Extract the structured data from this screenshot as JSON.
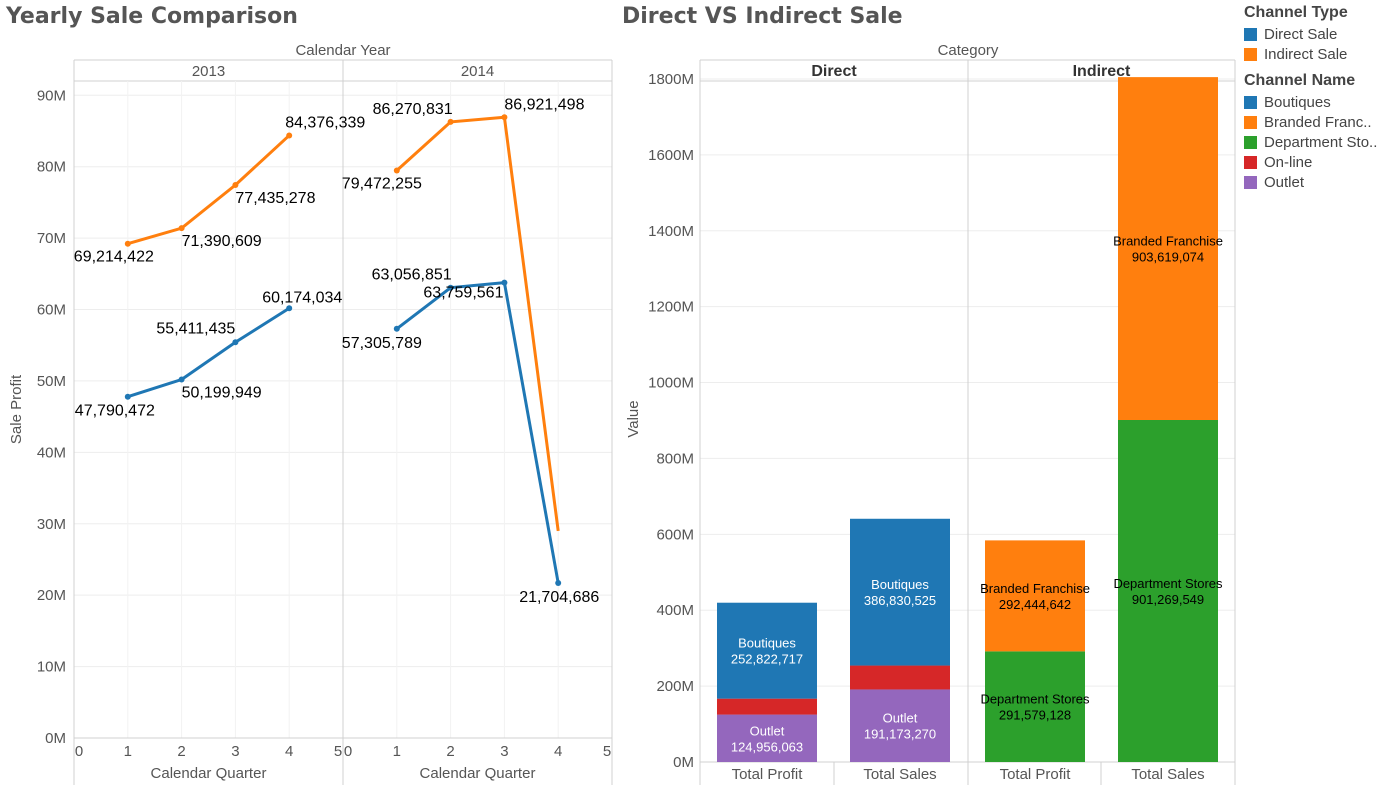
{
  "titles": {
    "left": "Yearly Sale Comparison",
    "right": "Direct VS Indirect Sale"
  },
  "colors": {
    "direct": "#1f77b4",
    "indirect": "#ff7f0e",
    "boutiques": "#1f77b4",
    "branded": "#ff7f0e",
    "department": "#2ca02c",
    "online": "#d62728",
    "outlet": "#9467bd"
  },
  "legend": {
    "channel_type_title": "Channel Type",
    "channel_type": [
      {
        "label": "Direct Sale",
        "color": "#1f77b4"
      },
      {
        "label": "Indirect Sale",
        "color": "#ff7f0e"
      }
    ],
    "channel_name_title": "Channel Name",
    "channel_name": [
      {
        "label": "Boutiques",
        "color": "#1f77b4"
      },
      {
        "label": "Branded Franc..",
        "color": "#ff7f0e"
      },
      {
        "label": "Department Sto..",
        "color": "#2ca02c"
      },
      {
        "label": "On-line",
        "color": "#d62728"
      },
      {
        "label": "Outlet",
        "color": "#9467bd"
      }
    ]
  },
  "chart_data": [
    {
      "type": "line",
      "title": "Yearly Sale Comparison",
      "column_header": "Calendar Year",
      "panels": [
        "2013",
        "2014"
      ],
      "xlabel": "Calendar Quarter",
      "ylabel": "Sale Profit",
      "xlim": [
        0,
        5
      ],
      "xticks": [
        "0",
        "1",
        "2",
        "3",
        "4",
        "5"
      ],
      "ylim": [
        0,
        92000000
      ],
      "yticks": [
        {
          "value": 0,
          "label": "0M"
        },
        {
          "value": 10000000,
          "label": "10M"
        },
        {
          "value": 20000000,
          "label": "20M"
        },
        {
          "value": 30000000,
          "label": "30M"
        },
        {
          "value": 40000000,
          "label": "40M"
        },
        {
          "value": 50000000,
          "label": "50M"
        },
        {
          "value": 60000000,
          "label": "60M"
        },
        {
          "value": 70000000,
          "label": "70M"
        },
        {
          "value": 80000000,
          "label": "80M"
        },
        {
          "value": 90000000,
          "label": "90M"
        }
      ],
      "grid": true,
      "series": [
        {
          "color": "#ff7f0e",
          "panels": [
            {
              "x": [
                1,
                2,
                3,
                4
              ],
              "y": [
                69214422,
                71390609,
                77435278,
                84376339
              ],
              "labels": [
                "69,214,422",
                "71,390,609",
                "77,435,278",
                "84,376,339"
              ]
            },
            {
              "x": [
                1,
                2,
                3,
                4
              ],
              "y": [
                79472255,
                86270831,
                86921498,
                29000000
              ],
              "labels": [
                "79,472,255",
                "86,270,831",
                "86,921,498",
                ""
              ]
            }
          ]
        },
        {
          "color": "#1f77b4",
          "panels": [
            {
              "x": [
                1,
                2,
                3,
                4
              ],
              "y": [
                47790472,
                50199949,
                55411435,
                60174034
              ],
              "labels": [
                "47,790,472",
                "50,199,949",
                "55,411,435",
                "60,174,034"
              ]
            },
            {
              "x": [
                1,
                2,
                3,
                4
              ],
              "y": [
                57305789,
                63056851,
                63759561,
                21704686
              ],
              "labels": [
                "57,305,789",
                "63,056,851",
                "63,759,561",
                "21,704,686"
              ]
            }
          ]
        }
      ]
    },
    {
      "type": "bar",
      "stacked": true,
      "title": "Direct VS Indirect Sale",
      "column_header": "Category",
      "groups": [
        "Direct",
        "Indirect"
      ],
      "categories": [
        "Total Profit",
        "Total Sales",
        "Total Profit",
        "Total Sales"
      ],
      "ylabel": "Value",
      "ylim": [
        0,
        1850000000
      ],
      "yticks": [
        {
          "value": 0,
          "label": "0M"
        },
        {
          "value": 200000000,
          "label": "200M"
        },
        {
          "value": 400000000,
          "label": "400M"
        },
        {
          "value": 600000000,
          "label": "600M"
        },
        {
          "value": 800000000,
          "label": "800M"
        },
        {
          "value": 1000000000,
          "label": "1000M"
        },
        {
          "value": 1200000000,
          "label": "1200M"
        },
        {
          "value": 1400000000,
          "label": "1400M"
        },
        {
          "value": 1600000000,
          "label": "1600M"
        },
        {
          "value": 1800000000,
          "label": "1800M"
        }
      ],
      "bars": [
        {
          "group": "Direct",
          "category": "Total Profit",
          "segments": [
            {
              "name": "Outlet",
              "value": 124956063,
              "color": "#9467bd",
              "label": "Outlet",
              "value_label": "124,956,063",
              "text_color": "#ffffff"
            },
            {
              "name": "On-line",
              "value": 42000000,
              "color": "#d62728",
              "label": "",
              "value_label": "",
              "text_color": "#ffffff"
            },
            {
              "name": "Boutiques",
              "value": 252822717,
              "color": "#1f77b4",
              "label": "Boutiques",
              "value_label": "252,822,717",
              "text_color": "#ffffff"
            }
          ]
        },
        {
          "group": "Direct",
          "category": "Total Sales",
          "segments": [
            {
              "name": "Outlet",
              "value": 191173270,
              "color": "#9467bd",
              "label": "Outlet",
              "value_label": "191,173,270",
              "text_color": "#ffffff"
            },
            {
              "name": "On-line",
              "value": 63000000,
              "color": "#d62728",
              "label": "",
              "value_label": "",
              "text_color": "#ffffff"
            },
            {
              "name": "Boutiques",
              "value": 386830525,
              "color": "#1f77b4",
              "label": "Boutiques",
              "value_label": "386,830,525",
              "text_color": "#ffffff"
            }
          ]
        },
        {
          "group": "Indirect",
          "category": "Total Profit",
          "segments": [
            {
              "name": "Department Stores",
              "value": 291579128,
              "color": "#2ca02c",
              "label": "Department Stores",
              "value_label": "291,579,128",
              "text_color": "#000000"
            },
            {
              "name": "Branded Franchise",
              "value": 292444642,
              "color": "#ff7f0e",
              "label": "Branded Franchise",
              "value_label": "292,444,642",
              "text_color": "#000000"
            }
          ]
        },
        {
          "group": "Indirect",
          "category": "Total Sales",
          "segments": [
            {
              "name": "Department Stores",
              "value": 901269549,
              "color": "#2ca02c",
              "label": "Department Stores",
              "value_label": "901,269,549",
              "text_color": "#000000"
            },
            {
              "name": "Branded Franchise",
              "value": 903619074,
              "color": "#ff7f0e",
              "label": "Branded Franchise",
              "value_label": "903,619,074",
              "text_color": "#000000"
            }
          ]
        }
      ]
    }
  ]
}
